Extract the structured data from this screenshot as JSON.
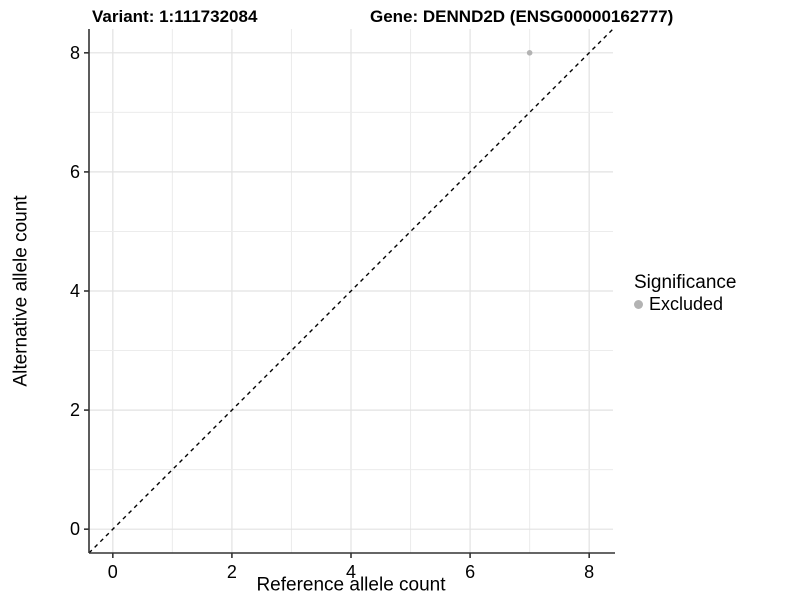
{
  "header": {
    "title_left": "Variant: 1:111732084",
    "title_right": "Gene: DENND2D (ENSG00000162777)"
  },
  "chart_data": {
    "type": "scatter",
    "xlabel": "Reference allele count",
    "ylabel": "Alternative allele count",
    "xlim": [
      -0.4,
      8.4
    ],
    "ylim": [
      -0.4,
      8.4
    ],
    "xticks": [
      0,
      2,
      4,
      6,
      8
    ],
    "yticks": [
      0,
      2,
      4,
      6,
      8
    ],
    "grid": {
      "every": 1,
      "on": true
    },
    "reference_line": {
      "equation": "y = x",
      "style": "dashed",
      "color": "#000000"
    },
    "series": [
      {
        "name": "Excluded",
        "color": "#b3b3b3",
        "points": [
          [
            7,
            8
          ]
        ]
      }
    ],
    "legend": {
      "title": "Significance",
      "position": "right",
      "items": [
        {
          "label": "Excluded",
          "color": "#b3b3b3"
        }
      ]
    }
  },
  "colors": {
    "background": "#ffffff",
    "grid_major": "#e2e2e2",
    "grid_minor": "#ececec",
    "axis": "#333333",
    "text": "#000000",
    "point": "#b3b3b3"
  }
}
